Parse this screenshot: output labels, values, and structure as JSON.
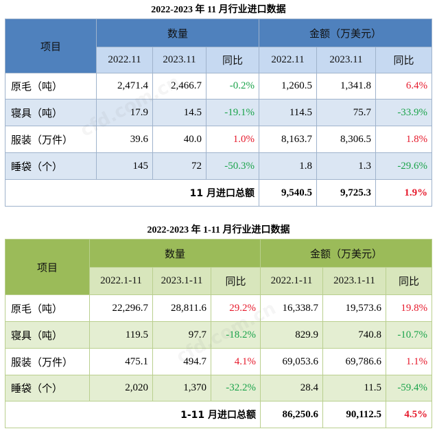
{
  "table1": {
    "caption": "2022-2023 年 11 月行业进口数据",
    "item_header": "项目",
    "quantity_header": "数量",
    "amount_header": "金额（万美元）",
    "sub_headers": [
      "2022.11",
      "2023.11",
      "同比",
      "2022.11",
      "2023.11",
      "同比"
    ],
    "rows": [
      {
        "label": "原毛（吨）",
        "q1": "2,471.4",
        "q2": "2,466.7",
        "qy": "-0.2%",
        "a1": "1,260.5",
        "a2": "1,341.8",
        "ay": "6.4%"
      },
      {
        "label": "寝具（吨）",
        "q1": "17.9",
        "q2": "14.5",
        "qy": "-19.1%",
        "a1": "114.5",
        "a2": "75.7",
        "ay": "-33.9%"
      },
      {
        "label": "服装（万件）",
        "q1": "39.6",
        "q2": "40.0",
        "qy": "1.0%",
        "a1": "8,163.7",
        "a2": "8,306.5",
        "ay": "1.8%"
      },
      {
        "label": "睡袋（个）",
        "q1": "145",
        "q2": "72",
        "qy": "-50.3%",
        "a1": "1.8",
        "a2": "1.3",
        "ay": "-29.6%"
      }
    ],
    "total": {
      "label": "11 月进口总额",
      "a1": "9,540.5",
      "a2": "9,725.3",
      "ay": "1.9%"
    }
  },
  "table2": {
    "caption": "2022-2023 年 1-11 月行业进口数据",
    "item_header": "项目",
    "quantity_header": "数量",
    "amount_header": "金额（万美元）",
    "sub_headers": [
      "2022.1-11",
      "2023.1-11",
      "同比",
      "2022.1-11",
      "2023.1-11",
      "同比"
    ],
    "rows": [
      {
        "label": "原毛（吨）",
        "q1": "22,296.7",
        "q2": "28,811.6",
        "qy": "29.2%",
        "a1": "16,338.7",
        "a2": "19,573.6",
        "ay": "19.8%"
      },
      {
        "label": "寝具（吨）",
        "q1": "119.5",
        "q2": "97.7",
        "qy": "-18.2%",
        "a1": "829.9",
        "a2": "740.8",
        "ay": "-10.7%"
      },
      {
        "label": "服装（万件）",
        "q1": "475.1",
        "q2": "494.7",
        "qy": "4.1%",
        "a1": "69,053.6",
        "a2": "69,786.6",
        "ay": "1.1%"
      },
      {
        "label": "睡袋（个）",
        "q1": "2,020",
        "q2": "1,370",
        "qy": "-32.2%",
        "a1": "28.4",
        "a2": "11.5",
        "ay": "-59.4%"
      }
    ],
    "total": {
      "label": "1-11 月进口总额",
      "a1": "86,250.6",
      "a2": "90,112.5",
      "ay": "4.5%"
    }
  },
  "colors": {
    "blue_header": "#4f81bd",
    "blue_subheader": "#c6d9f1",
    "blue_row_alt": "#dbe6f3",
    "green_header": "#9bbb59",
    "green_subheader": "#d8e6bc",
    "green_row_alt": "#e4eed2",
    "negative": "#1aa34a",
    "positive": "#e6192b"
  },
  "watermark": "cfd.com.cn"
}
